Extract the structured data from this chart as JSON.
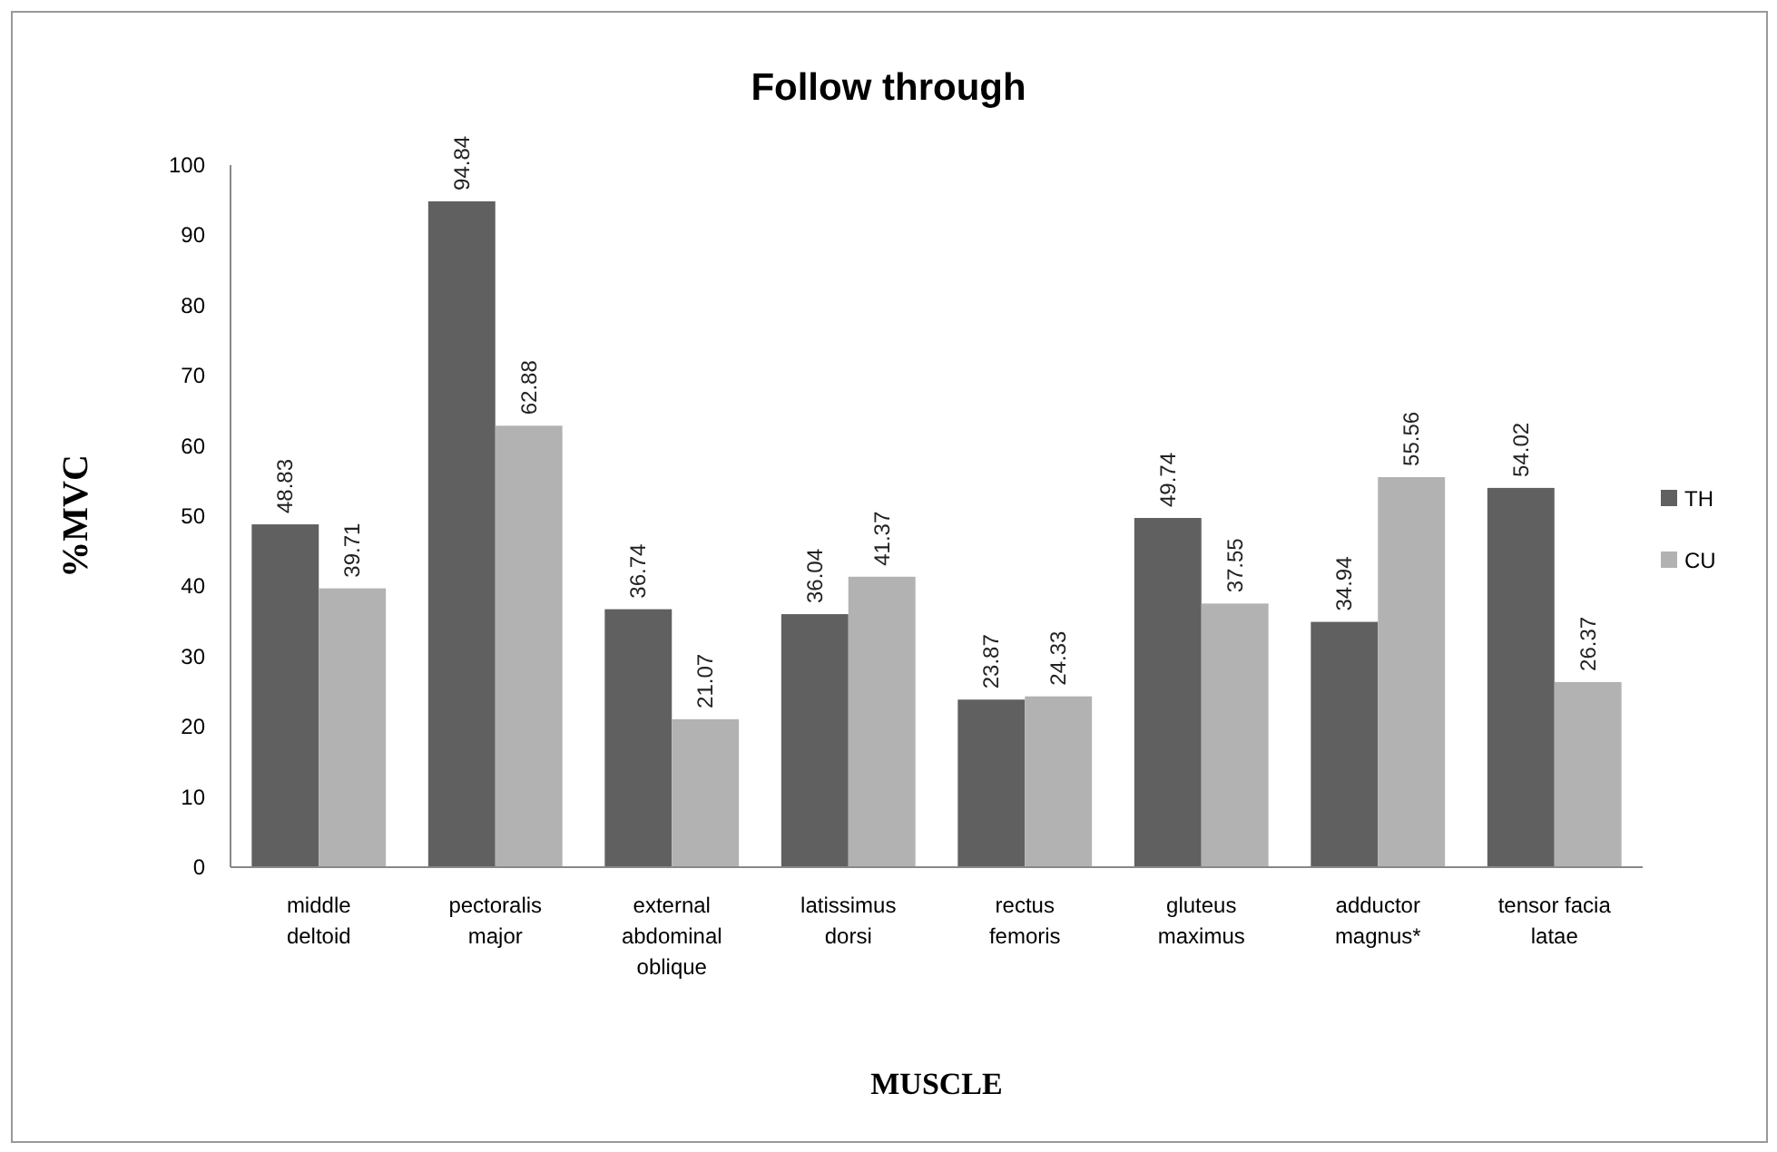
{
  "chart_data": {
    "type": "bar",
    "title": "Follow through",
    "xlabel": "MUSCLE",
    "ylabel": "%MVC",
    "categories": [
      "middle deltoid",
      "pectoralis major",
      "external abdominal oblique",
      "latissimus dorsi",
      "rectus femoris",
      "gluteus maximus",
      "adductor magnus*",
      "tensor facia latae"
    ],
    "series": [
      {
        "name": "TH",
        "color": "#606060",
        "values": [
          48.83,
          94.84,
          36.74,
          36.04,
          23.87,
          49.74,
          34.94,
          54.02
        ]
      },
      {
        "name": "CU",
        "color": "#b2b2b2",
        "values": [
          39.71,
          62.88,
          21.07,
          41.37,
          24.33,
          37.55,
          55.56,
          26.37
        ]
      }
    ],
    "ylim": [
      0,
      100
    ],
    "yticks": [
      0,
      10,
      20,
      30,
      40,
      50,
      60,
      70,
      80,
      90,
      100
    ],
    "data_labels": true,
    "legend": "right",
    "grid": false
  }
}
